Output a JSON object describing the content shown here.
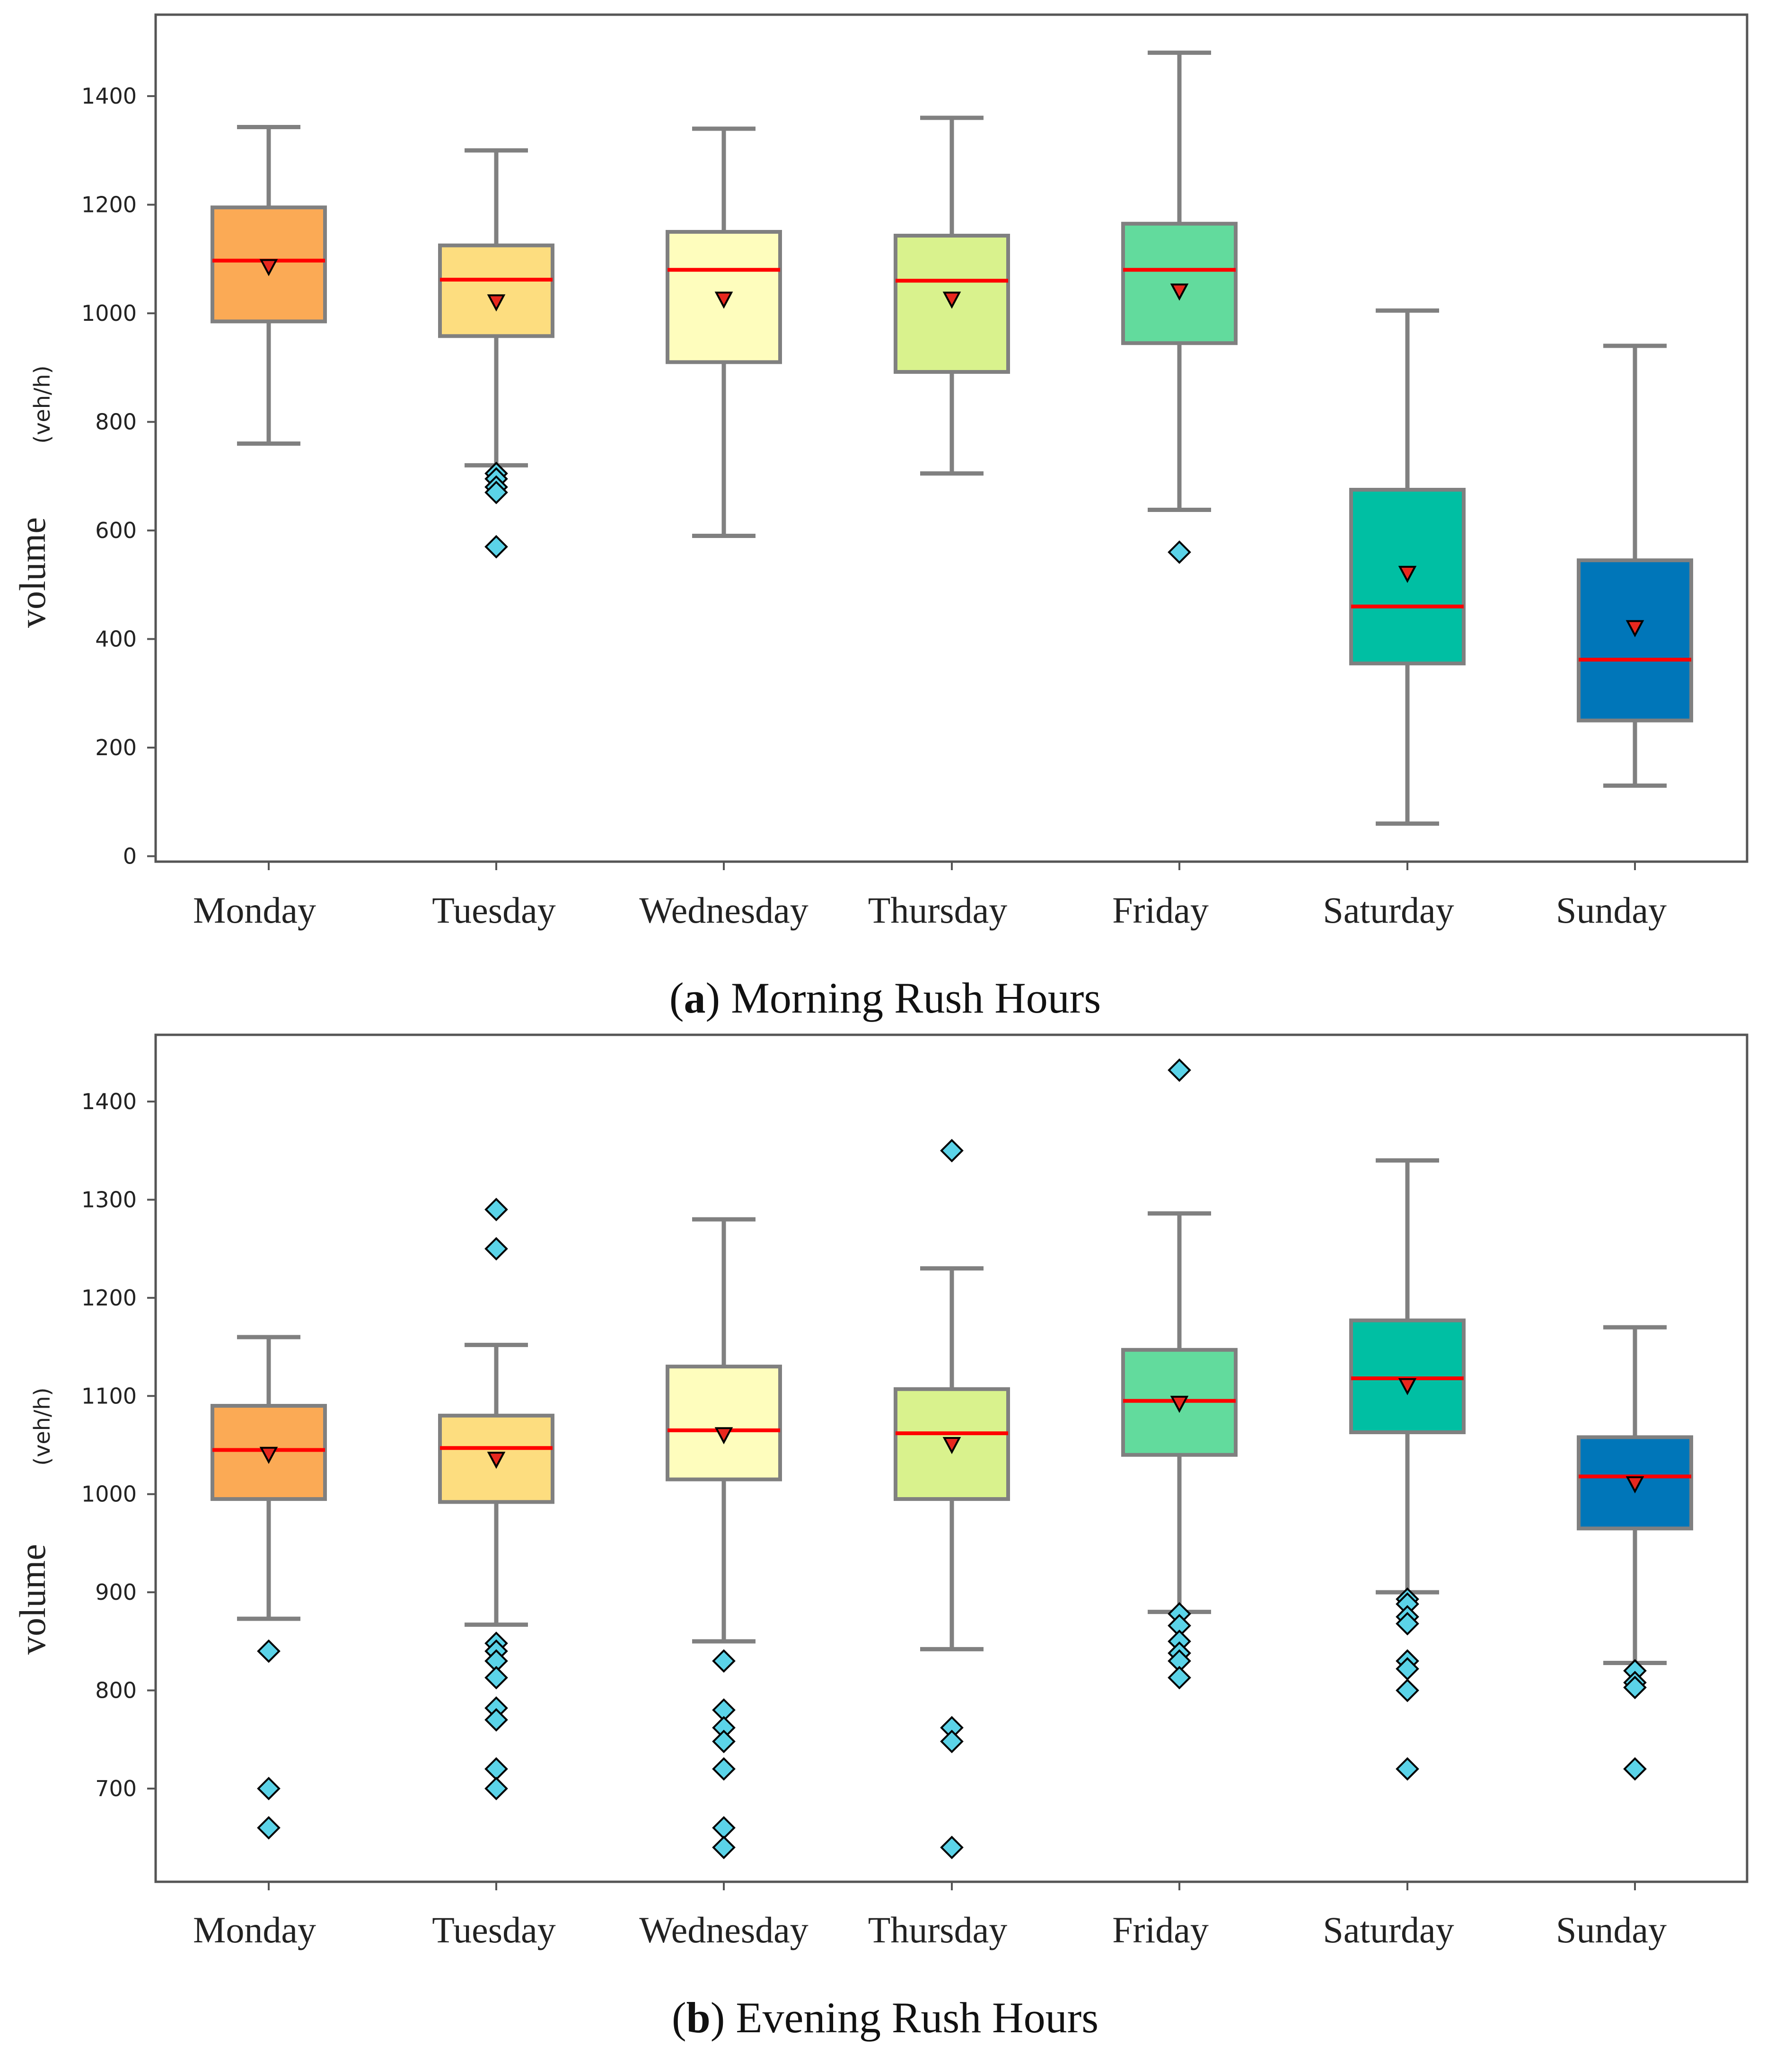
{
  "figure": {
    "caption_a": {
      "letter": "a",
      "text": "Morning Rush Hours"
    },
    "caption_b": {
      "letter": "b",
      "text": "Evening Rush Hours"
    }
  },
  "colors": {
    "box_fills": [
      "#FBAA55",
      "#FDDD7F",
      "#FEFDBD",
      "#D9F28D",
      "#62DB9D",
      "#00BFA3",
      "#0076B9"
    ],
    "median": "#FF0000",
    "mean_marker": "#E8281E",
    "outlier": "#5BD3E8",
    "whisker": "#808080"
  },
  "chart_data": [
    {
      "type": "box",
      "title": "(a) Morning Rush Hours",
      "ylabel": "volume",
      "yunit": "(veh/h)",
      "ylim": [
        -10,
        1550
      ],
      "yticks": [
        0,
        200,
        400,
        600,
        800,
        1000,
        1200,
        1400
      ],
      "categories": [
        "Monday",
        "Tuesday",
        "Wednesday",
        "Thursday",
        "Friday",
        "Saturday",
        "Sunday"
      ],
      "boxes": [
        {
          "whislo": 760,
          "q1": 985,
          "med": 1097,
          "q3": 1195,
          "whishi": 1343,
          "mean": 1085,
          "fliers": []
        },
        {
          "whislo": 720,
          "q1": 958,
          "med": 1062,
          "q3": 1125,
          "whishi": 1300,
          "mean": 1020,
          "fliers": [
            705,
            695,
            680,
            670,
            570
          ]
        },
        {
          "whislo": 590,
          "q1": 910,
          "med": 1080,
          "q3": 1150,
          "whishi": 1340,
          "mean": 1025,
          "fliers": []
        },
        {
          "whislo": 705,
          "q1": 892,
          "med": 1060,
          "q3": 1143,
          "whishi": 1360,
          "mean": 1025,
          "fliers": []
        },
        {
          "whislo": 638,
          "q1": 945,
          "med": 1080,
          "q3": 1165,
          "whishi": 1480,
          "mean": 1040,
          "fliers": [
            560
          ]
        },
        {
          "whislo": 60,
          "q1": 355,
          "med": 460,
          "q3": 675,
          "whishi": 1005,
          "mean": 520,
          "fliers": []
        },
        {
          "whislo": 130,
          "q1": 250,
          "med": 362,
          "q3": 545,
          "whishi": 940,
          "mean": 420,
          "fliers": []
        }
      ]
    },
    {
      "type": "box",
      "title": "(b) Evening Rush Hours",
      "ylabel": "volume",
      "yunit": "(veh/h)",
      "ylim": [
        605,
        1468
      ],
      "yticks": [
        700,
        800,
        900,
        1000,
        1100,
        1200,
        1300,
        1400
      ],
      "categories": [
        "Monday",
        "Tuesday",
        "Wednesday",
        "Thursday",
        "Friday",
        "Saturday",
        "Sunday"
      ],
      "boxes": [
        {
          "whislo": 873,
          "q1": 995,
          "med": 1045,
          "q3": 1090,
          "whishi": 1160,
          "mean": 1040,
          "fliers": [
            840,
            700,
            660
          ]
        },
        {
          "whislo": 867,
          "q1": 992,
          "med": 1047,
          "q3": 1080,
          "whishi": 1152,
          "mean": 1035,
          "fliers": [
            1290,
            1250,
            848,
            840,
            830,
            813,
            782,
            770,
            720,
            700
          ]
        },
        {
          "whislo": 850,
          "q1": 1015,
          "med": 1065,
          "q3": 1130,
          "whishi": 1280,
          "mean": 1060,
          "fliers": [
            830,
            780,
            762,
            748,
            720,
            660,
            640
          ]
        },
        {
          "whislo": 842,
          "q1": 995,
          "med": 1062,
          "q3": 1107,
          "whishi": 1230,
          "mean": 1050,
          "fliers": [
            1350,
            762,
            748,
            640
          ]
        },
        {
          "whislo": 880,
          "q1": 1040,
          "med": 1095,
          "q3": 1147,
          "whishi": 1286,
          "mean": 1092,
          "fliers": [
            1432,
            878,
            866,
            850,
            838,
            830,
            813
          ]
        },
        {
          "whislo": 900,
          "q1": 1063,
          "med": 1118,
          "q3": 1177,
          "whishi": 1340,
          "mean": 1110,
          "fliers": [
            893,
            888,
            875,
            868,
            830,
            822,
            800,
            720
          ]
        },
        {
          "whislo": 828,
          "q1": 965,
          "med": 1018,
          "q3": 1058,
          "whishi": 1170,
          "mean": 1010,
          "fliers": [
            820,
            808,
            803,
            720
          ]
        }
      ]
    }
  ]
}
